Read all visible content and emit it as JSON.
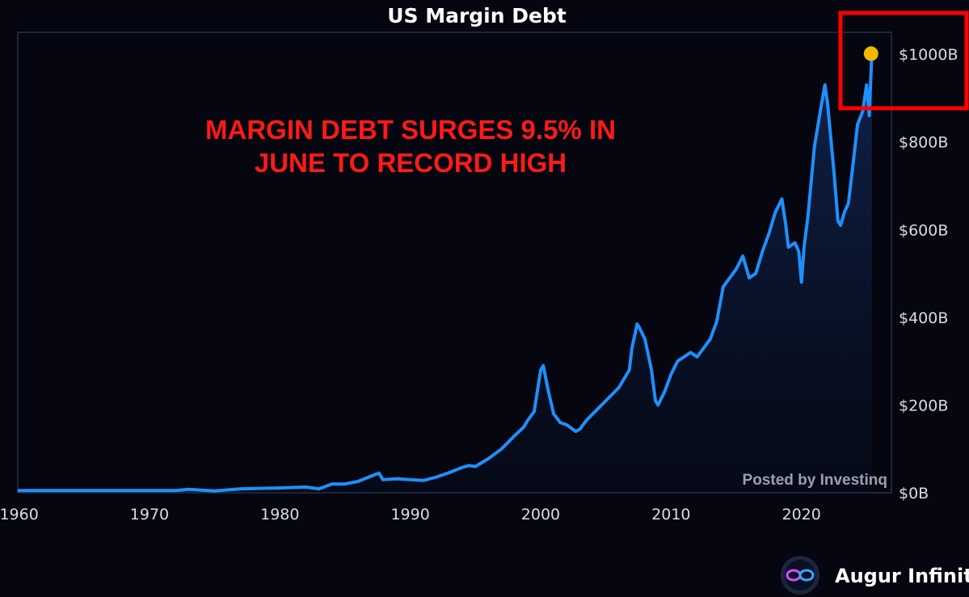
{
  "chart_data": {
    "type": "area",
    "title": "US Margin Debt",
    "xlabel": "",
    "ylabel": "",
    "xlim": [
      1959.9,
      1966.9
    ],
    "ylim": [
      0,
      1050
    ],
    "x_ticks": [
      1960,
      1970,
      1980,
      1990,
      2000,
      2010,
      2020
    ],
    "y_ticks": [
      {
        "value": 0,
        "label": "$0B"
      },
      {
        "value": 200,
        "label": "$200B"
      },
      {
        "value": 400,
        "label": "$400B"
      },
      {
        "value": 600,
        "label": "$600B"
      },
      {
        "value": 800,
        "label": "$800B"
      },
      {
        "value": 1000,
        "label": "$1000B"
      }
    ],
    "grid": false,
    "legend": "none",
    "series": [
      {
        "color": "#1e90ff",
        "x": [
          1959.9,
          1965,
          1970,
          1972,
          1973,
          1975,
          1977,
          1980,
          1982,
          1983,
          1984,
          1985,
          1986,
          1987,
          1987.6,
          1987.9,
          1989,
          1990,
          1991,
          1992,
          1993,
          1994,
          1994.5,
          1995,
          1996,
          1997,
          1998,
          1998.7,
          1999,
          1999.5,
          2000,
          2000.2,
          2000.6,
          2001,
          2001.5,
          2002,
          2002.7,
          2003,
          2003.5,
          2004,
          2005,
          2006,
          2006.8,
          2007,
          2007.4,
          2007.6,
          2008,
          2008.5,
          2008.8,
          2009,
          2009.5,
          2010,
          2010.5,
          2011,
          2011.5,
          2012,
          2013,
          2013.5,
          2014,
          2014.5,
          2015,
          2015.5,
          2016,
          2016.5,
          2017,
          2017.5,
          2018,
          2018.5,
          2018.8,
          2019,
          2019.5,
          2019.8,
          2020,
          2020.2,
          2020.5,
          2021,
          2021.5,
          2021.8,
          2022,
          2022.5,
          2022.8,
          2023,
          2023.3,
          2023.6,
          2024,
          2024.3,
          2024.7,
          2025,
          2025.2,
          2025.4
        ],
        "values": [
          5,
          5,
          5,
          5,
          8,
          4,
          9,
          11,
          13,
          9,
          20,
          20,
          26,
          38,
          45,
          30,
          32,
          30,
          28,
          36,
          46,
          58,
          62,
          60,
          78,
          100,
          130,
          150,
          165,
          185,
          280,
          290,
          230,
          180,
          160,
          155,
          140,
          145,
          165,
          180,
          210,
          240,
          280,
          330,
          385,
          375,
          350,
          280,
          210,
          200,
          230,
          270,
          300,
          310,
          320,
          310,
          350,
          390,
          470,
          490,
          510,
          540,
          490,
          500,
          550,
          590,
          640,
          670,
          610,
          560,
          570,
          550,
          480,
          560,
          630,
          790,
          880,
          930,
          890,
          730,
          620,
          610,
          640,
          660,
          760,
          840,
          870,
          930,
          860,
          1005
        ]
      }
    ],
    "annotations": {
      "headline_line1": "MARGIN DEBT SURGES 9.5% IN",
      "headline_line2": "JUNE TO RECORD HIGH",
      "watermark": "Posted by Investinq",
      "brand": "Augur Infinity"
    },
    "highlight": {
      "x": 2025.4,
      "value": 1005,
      "marker_color": "#f5b800",
      "box_color": "#ff0000"
    }
  }
}
